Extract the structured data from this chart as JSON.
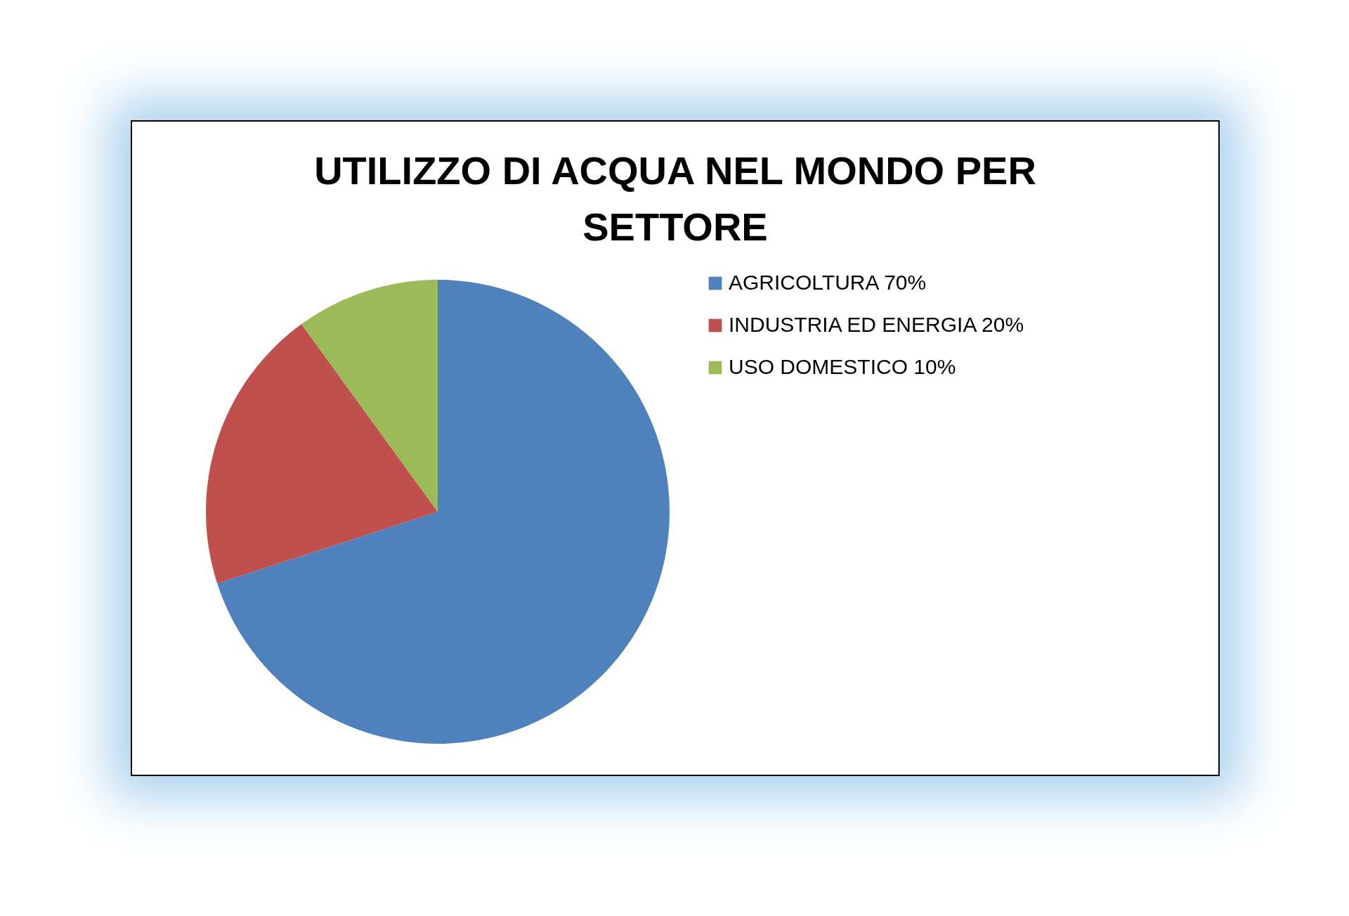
{
  "chart_data": {
    "type": "pie",
    "title": "UTILIZZO DI ACQUA NEL MONDO PER SETTORE",
    "categories": [
      "AGRICOLTURA 70%",
      "INDUSTRIA ED ENERGIA 20%",
      "USO DOMESTICO 10%"
    ],
    "values": [
      70,
      20,
      10
    ],
    "colors": [
      "#4f81bd",
      "#c0504d",
      "#9bbb59"
    ],
    "legend": "right"
  }
}
